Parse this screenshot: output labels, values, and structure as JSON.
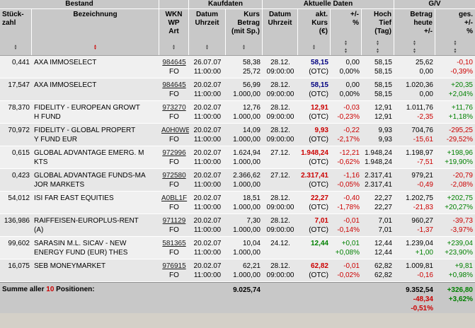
{
  "colors": {
    "negative": "#cc0000",
    "positive": "#008000",
    "unchanged_price": "#000080",
    "header_bg": "#c8c8c8",
    "row_bg": "#f0f0f0",
    "row_alt_bg": "#e7e7e7"
  },
  "groups": [
    {
      "label": "Bestand"
    },
    {
      "label": ""
    },
    {
      "label": "Kaufdaten"
    },
    {
      "label": "Aktuelle Daten"
    },
    {
      "label": "G/V"
    }
  ],
  "columns": [
    {
      "id": "stueckzahl",
      "lines": [
        "Stück-",
        "zahl"
      ],
      "sort": "single",
      "active": false
    },
    {
      "id": "bezeichnung",
      "lines": [
        "Bezeichnung"
      ],
      "sort": "single",
      "active": true
    },
    {
      "id": "wkn",
      "lines": [
        "WKN",
        "WP",
        "Art"
      ],
      "sort": "single",
      "active": false
    },
    {
      "id": "kauf-datum",
      "lines": [
        "Datum",
        "Uhrzeit"
      ],
      "sort": "single",
      "active": false
    },
    {
      "id": "kauf-kurs",
      "lines": [
        "Kurs",
        "Betrag",
        "(mit Sp.)"
      ],
      "sort": "single",
      "active": false
    },
    {
      "id": "akt-datum",
      "lines": [
        "Datum",
        "Uhrzeit"
      ],
      "sort": "none",
      "active": false
    },
    {
      "id": "akt-kurs",
      "lines": [
        "akt.",
        "Kurs",
        "(€)"
      ],
      "sort": "single",
      "active": false
    },
    {
      "id": "plus-minus",
      "lines": [
        "+/-",
        "%"
      ],
      "sort": "double",
      "active": false
    },
    {
      "id": "hoch-tief",
      "lines": [
        "Hoch",
        "Tief",
        "(Tag)"
      ],
      "sort": "double",
      "active": false
    },
    {
      "id": "betrag-heute",
      "lines": [
        "Betrag",
        "heute",
        "+/-"
      ],
      "sort": "double",
      "active": false
    },
    {
      "id": "ges",
      "lines": [
        "ges.",
        "+/-",
        "%"
      ],
      "sort": "double",
      "active": false
    }
  ],
  "rows": [
    {
      "stueck": "0,441",
      "name_lines": [
        "AXA IMMOSELECT"
      ],
      "wkn": "984645",
      "art": "FO",
      "buy_date": "26.07.07",
      "buy_time": "11:00:00",
      "buy_price": "58,38",
      "buy_amount": "25,72",
      "cur_date": "28.12.",
      "cur_time": "09:00:00",
      "cur_price": "58,15",
      "cur_suffix": "(OTC)",
      "cur_trend": "flat",
      "chg": "0,00",
      "chg_pct": "0,00%",
      "chg_trend": "flat",
      "high": "58,15",
      "low": "58,15",
      "value": "25,62",
      "value_chg": "0,00",
      "value_chg_trend": "flat",
      "gain": "-0,10",
      "gain_pct": "-0,39%",
      "gain_trend": "down"
    },
    {
      "stueck": "17,547",
      "name_lines": [
        "AXA IMMOSELECT"
      ],
      "wkn": "984645",
      "art": "FO",
      "buy_date": "20.02.07",
      "buy_time": "11:00:00",
      "buy_price": "56,99",
      "buy_amount": "1.000,00",
      "cur_date": "28.12.",
      "cur_time": "09:00:00",
      "cur_price": "58,15",
      "cur_suffix": "(OTC)",
      "cur_trend": "flat",
      "chg": "0,00",
      "chg_pct": "0,00%",
      "chg_trend": "flat",
      "high": "58,15",
      "low": "58,15",
      "value": "1.020,36",
      "value_chg": "0,00",
      "value_chg_trend": "flat",
      "gain": "+20,35",
      "gain_pct": "+2,04%",
      "gain_trend": "up"
    },
    {
      "stueck": "78,370",
      "name_lines": [
        "FIDELITY - EUROPEAN GROWT",
        "H FUND"
      ],
      "wkn": "973270",
      "art": "FO",
      "buy_date": "20.02.07",
      "buy_time": "11:00:00",
      "buy_price": "12,76",
      "buy_amount": "1.000,00",
      "cur_date": "28.12.",
      "cur_time": "09:00:00",
      "cur_price": "12,91",
      "cur_suffix": "(OTC)",
      "cur_trend": "down",
      "chg": "-0,03",
      "chg_pct": "-0,23%",
      "chg_trend": "down",
      "high": "12,91",
      "low": "12,91",
      "value": "1.011,76",
      "value_chg": "-2,35",
      "value_chg_trend": "down",
      "gain": "+11,76",
      "gain_pct": "+1,18%",
      "gain_trend": "up"
    },
    {
      "stueck": "70,972",
      "name_lines": [
        "FIDELITY - GLOBAL PROPERT",
        "Y FUND EUR"
      ],
      "wkn": "A0H0WB",
      "art": "FO",
      "buy_date": "20.02.07",
      "buy_time": "11:00:00",
      "buy_price": "14,09",
      "buy_amount": "1.000,00",
      "cur_date": "28.12.",
      "cur_time": "09:00:00",
      "cur_price": "9,93",
      "cur_suffix": "(OTC)",
      "cur_trend": "down",
      "chg": "-0,22",
      "chg_pct": "-2,17%",
      "chg_trend": "down",
      "high": "9,93",
      "low": "9,93",
      "value": "704,76",
      "value_chg": "-15,61",
      "value_chg_trend": "down",
      "gain": "-295,25",
      "gain_pct": "-29,52%",
      "gain_trend": "down"
    },
    {
      "stueck": "0,615",
      "name_lines": [
        "GLOBAL ADVANTAGE EMERG. M",
        "KTS"
      ],
      "wkn": "972996",
      "art": "FO",
      "buy_date": "20.02.07",
      "buy_time": "11:00:00",
      "buy_price": "1.624,94",
      "buy_amount": "1.000,00",
      "cur_date": "27.12.",
      "cur_time": "",
      "cur_price": "1.948,24",
      "cur_suffix": "(OTC)",
      "cur_trend": "down",
      "chg": "-12,21",
      "chg_pct": "-0,62%",
      "chg_trend": "down",
      "high": "1.948,24",
      "low": "1.948,24",
      "value": "1.198,97",
      "value_chg": "-7,51",
      "value_chg_trend": "down",
      "gain": "+198,96",
      "gain_pct": "+19,90%",
      "gain_trend": "up"
    },
    {
      "stueck": "0,423",
      "name_lines": [
        "GLOBAL ADVANTAGE FUNDS-MA",
        "JOR MARKETS"
      ],
      "wkn": "972580",
      "art": "FO",
      "buy_date": "20.02.07",
      "buy_time": "11:00:00",
      "buy_price": "2.366,62",
      "buy_amount": "1.000,00",
      "cur_date": "27.12.",
      "cur_time": "",
      "cur_price": "2.317,41",
      "cur_suffix": "(OTC)",
      "cur_trend": "down",
      "chg": "-1,16",
      "chg_pct": "-0,05%",
      "chg_trend": "down",
      "high": "2.317,41",
      "low": "2.317,41",
      "value": "979,21",
      "value_chg": "-0,49",
      "value_chg_trend": "down",
      "gain": "-20,79",
      "gain_pct": "-2,08%",
      "gain_trend": "down"
    },
    {
      "stueck": "54,012",
      "name_lines": [
        "ISI FAR EAST EQUITIES"
      ],
      "wkn": "A0BL1F",
      "art": "FO",
      "buy_date": "20.02.07",
      "buy_time": "11:00:00",
      "buy_price": "18,51",
      "buy_amount": "1.000,00",
      "cur_date": "28.12.",
      "cur_time": "09:00:00",
      "cur_price": "22,27",
      "cur_suffix": "(OTC)",
      "cur_trend": "down",
      "chg": "-0,40",
      "chg_pct": "-1,78%",
      "chg_trend": "down",
      "high": "22,27",
      "low": "22,27",
      "value": "1.202,75",
      "value_chg": "-21,83",
      "value_chg_trend": "down",
      "gain": "+202,75",
      "gain_pct": "+20,27%",
      "gain_trend": "up"
    },
    {
      "stueck": "136,986",
      "name_lines": [
        "RAIFFEISEN-EUROPLUS-RENT",
        "(A)"
      ],
      "wkn": "971129",
      "art": "FO",
      "buy_date": "20.02.07",
      "buy_time": "11:00:00",
      "buy_price": "7,30",
      "buy_amount": "1.000,00",
      "cur_date": "28.12.",
      "cur_time": "09:00:00",
      "cur_price": "7,01",
      "cur_suffix": "(OTC)",
      "cur_trend": "down",
      "chg": "-0,01",
      "chg_pct": "-0,14%",
      "chg_trend": "down",
      "high": "7,01",
      "low": "7,01",
      "value": "960,27",
      "value_chg": "-1,37",
      "value_chg_trend": "down",
      "gain": "-39,73",
      "gain_pct": "-3,97%",
      "gain_trend": "down"
    },
    {
      "stueck": "99,602",
      "name_lines": [
        "SARASIN M.L. SICAV - NEW",
        "ENERGY FUND (EUR) THES"
      ],
      "wkn": "581365",
      "art": "FO",
      "buy_date": "20.02.07",
      "buy_time": "11:00:00",
      "buy_price": "10,04",
      "buy_amount": "1.000,00",
      "cur_date": "24.12.",
      "cur_time": "",
      "cur_price": "12,44",
      "cur_suffix": "",
      "cur_trend": "up",
      "chg": "+0,01",
      "chg_pct": "+0,08%",
      "chg_trend": "up",
      "high": "12,44",
      "low": "12,44",
      "value": "1.239,04",
      "value_chg": "+1,00",
      "value_chg_trend": "up",
      "gain": "+239,04",
      "gain_pct": "+23,90%",
      "gain_trend": "up"
    },
    {
      "stueck": "16,075",
      "name_lines": [
        "SEB MONEYMARKET"
      ],
      "wkn": "976915",
      "art": "FO",
      "buy_date": "20.02.07",
      "buy_time": "11:00:00",
      "buy_price": "62,21",
      "buy_amount": "1.000,00",
      "cur_date": "28.12.",
      "cur_time": "09:00:00",
      "cur_price": "62,82",
      "cur_suffix": "(OTC)",
      "cur_trend": "down",
      "chg": "-0,01",
      "chg_pct": "-0,02%",
      "chg_trend": "down",
      "high": "62,82",
      "low": "62,82",
      "value": "1.009,81",
      "value_chg": "-0,16",
      "value_chg_trend": "down",
      "gain": "+9,81",
      "gain_pct": "+0,98%",
      "gain_trend": "up"
    }
  ],
  "footer": {
    "label_prefix": "Summe aller",
    "count": "10",
    "label_suffix": "Positionen:",
    "betrag_total": "9.025,74",
    "value_total": "9.352,54",
    "day_change_total": "-48,34",
    "day_change_pct": "-0,51%",
    "gain_total": "+326,80",
    "gain_pct": "+3,62%"
  }
}
